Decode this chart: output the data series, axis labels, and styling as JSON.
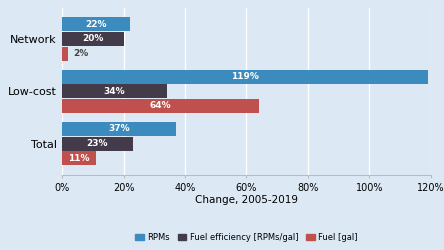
{
  "categories": [
    "Network",
    "Low-cost",
    "Total"
  ],
  "series": {
    "RPMs": [
      22,
      119,
      37
    ],
    "Fuel efficiency [RPMs/gal]": [
      20,
      34,
      23
    ],
    "Fuel [gal]": [
      2,
      64,
      11
    ]
  },
  "colors": {
    "RPMs": "#3b8bbf",
    "Fuel efficiency [RPMs/gal]": "#433a4a",
    "Fuel [gal]": "#c0504d"
  },
  "xlabel": "Change, 2005-2019",
  "xlim": [
    0,
    120
  ],
  "xticks": [
    0,
    20,
    40,
    60,
    80,
    100,
    120
  ],
  "xticklabels": [
    "0%",
    "20%",
    "40%",
    "60%",
    "80%",
    "100%",
    "120%"
  ],
  "background_color": "#dce9f5",
  "bar_height": 0.28
}
